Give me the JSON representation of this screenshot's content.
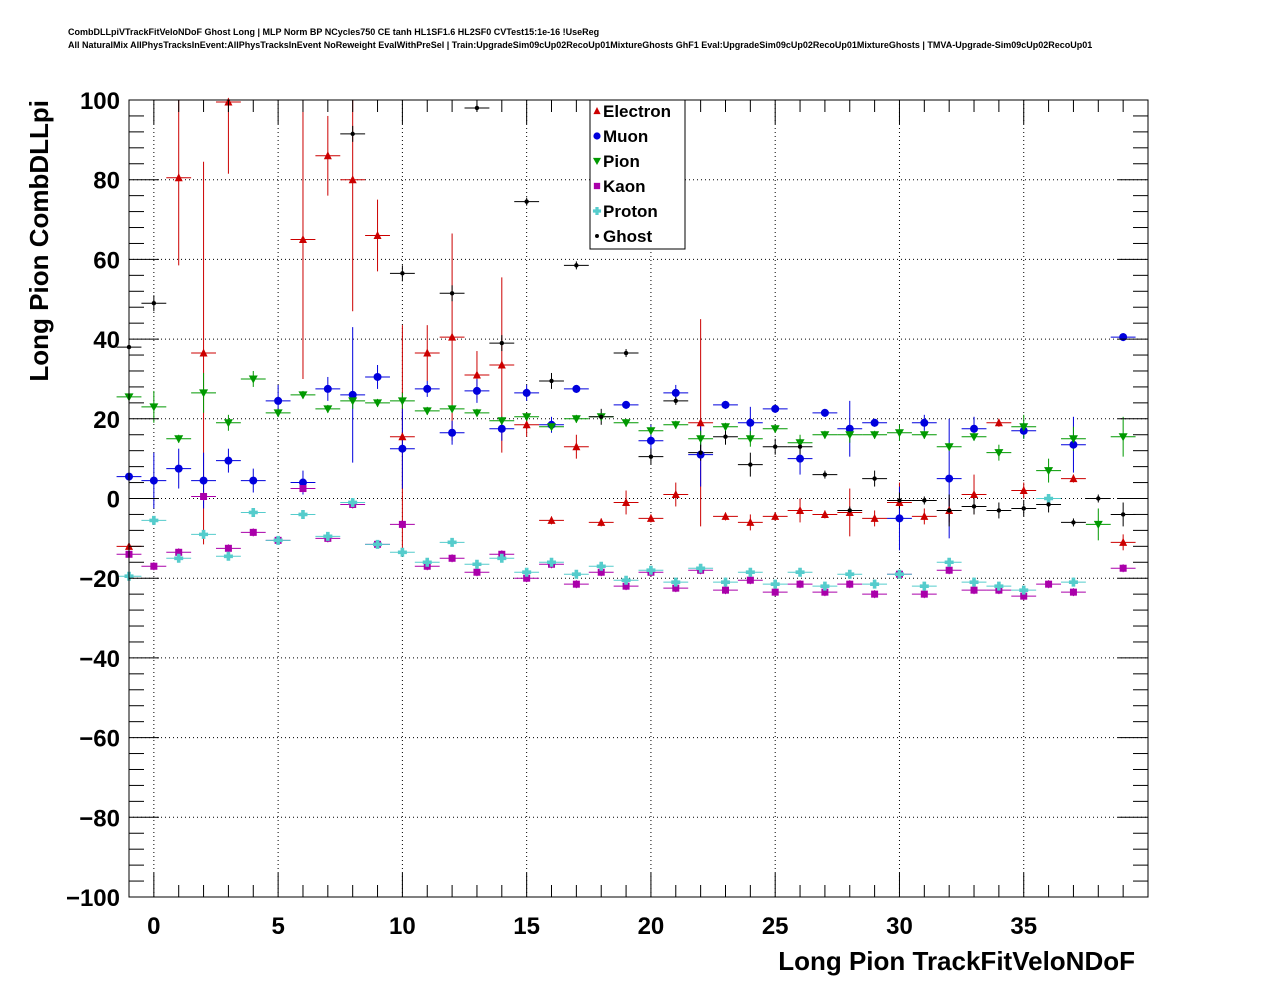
{
  "header": {
    "title_line1": "CombDLLpiVTrackFitVeloNDoF Ghost Long | MLP Norm BP NCycles750 CE tanh HL1SF1.6 HL2SF0 CVTest15:1e-16 !UseReg",
    "title_line2": "All NaturalMix AllPhysTracksInEvent:AllPhysTracksInEvent NoReweight EvalWithPreSel | Train:UpgradeSim09cUp02RecoUp01MixtureGhosts GhF1 Eval:UpgradeSim09cUp02RecoUp01MixtureGhosts | TMVA-Upgrade-Sim09cUp02RecoUp01"
  },
  "chart_data": {
    "type": "scatter",
    "xlabel": "Long Pion TrackFitVeloNDoF",
    "ylabel": "Long Pion CombDLLpi",
    "xlim": [
      -1,
      40
    ],
    "ylim": [
      -100,
      100
    ],
    "x_ticks": [
      "0",
      "5",
      "10",
      "15",
      "20",
      "25",
      "30",
      "35"
    ],
    "y_ticks": [
      "−100",
      "−80",
      "−60",
      "−40",
      "−20",
      "0",
      "20",
      "40",
      "60",
      "80",
      "100"
    ],
    "grid": true,
    "legend_position": "top-center",
    "series": [
      {
        "name": "Electron",
        "color": "#cc0000",
        "marker": "triangle-up",
        "x": [
          -1,
          1,
          2,
          3,
          6,
          7,
          8,
          9,
          10,
          11,
          12,
          13,
          14,
          15,
          16,
          17,
          18,
          19,
          20,
          21,
          22,
          23,
          24,
          25,
          26,
          27,
          28,
          29,
          30,
          31,
          32,
          33,
          34,
          35,
          37,
          39
        ],
        "y": [
          -12,
          80.5,
          36.5,
          99.5,
          65,
          86,
          80,
          66,
          15.5,
          36.5,
          40.5,
          31,
          33.5,
          18.5,
          -5.5,
          13,
          -6,
          -1,
          -5,
          1,
          19,
          -4.5,
          -6,
          -4.5,
          -3,
          -4,
          -3.5,
          -5,
          -1,
          -4.5,
          -3,
          1,
          19,
          2,
          5,
          -11
        ],
        "err": [
          2,
          22,
          48,
          18,
          35,
          10,
          33,
          9,
          28,
          7,
          26,
          6,
          22,
          3,
          1,
          3,
          1,
          3,
          1,
          3,
          26,
          1,
          2,
          1,
          3,
          1,
          6,
          2,
          5,
          2,
          3,
          5,
          1,
          2,
          1,
          2
        ]
      },
      {
        "name": "Muon",
        "color": "#0000dd",
        "marker": "circle",
        "x": [
          -1,
          0,
          1,
          2,
          3,
          4,
          5,
          6,
          7,
          8,
          9,
          10,
          11,
          12,
          13,
          14,
          15,
          16,
          17,
          19,
          20,
          21,
          22,
          23,
          24,
          25,
          26,
          27,
          28,
          29,
          30,
          31,
          32,
          33,
          35,
          37,
          39
        ],
        "y": [
          5.5,
          4.5,
          7.5,
          4.5,
          9.5,
          4.5,
          24.5,
          4,
          27.5,
          26,
          30.5,
          12.5,
          27.5,
          16.5,
          27,
          17.5,
          26.5,
          18.5,
          27.5,
          23.5,
          14.5,
          26.5,
          11,
          23.5,
          19,
          22.5,
          10,
          21.5,
          17.5,
          19,
          -5,
          19,
          5,
          17.5,
          17,
          13.5,
          40.5
        ],
        "err": [
          35,
          7,
          5,
          7,
          3,
          3,
          4,
          3,
          3,
          17,
          3,
          10,
          2,
          3,
          3,
          3,
          2,
          2,
          1,
          1,
          4,
          2,
          8,
          1,
          4,
          1,
          4,
          1,
          7,
          1,
          8,
          2,
          15,
          3,
          2,
          7,
          1
        ]
      },
      {
        "name": "Pion",
        "color": "#009900",
        "marker": "triangle-down",
        "x": [
          -1,
          0,
          1,
          2,
          3,
          4,
          5,
          6,
          7,
          8,
          9,
          10,
          11,
          12,
          13,
          14,
          15,
          16,
          17,
          18,
          19,
          20,
          21,
          22,
          23,
          24,
          25,
          26,
          27,
          28,
          29,
          30,
          31,
          32,
          33,
          34,
          35,
          36,
          37,
          38,
          39
        ],
        "y": [
          25.5,
          23,
          15,
          26.5,
          19,
          30,
          21.5,
          26,
          22.5,
          24.5,
          24,
          24.5,
          22,
          22.5,
          21.5,
          19.5,
          20.5,
          18,
          20,
          20.5,
          19,
          17,
          18.5,
          15,
          18,
          15,
          17.5,
          14,
          16,
          16,
          16,
          16.5,
          16,
          13,
          15.5,
          11.5,
          18,
          7,
          15,
          -6.5,
          15.5
        ],
        "err": [
          14,
          4,
          1,
          5,
          2,
          2,
          1,
          1,
          1,
          2,
          1,
          2,
          1,
          1,
          1,
          1,
          1,
          1,
          1,
          1,
          1,
          1,
          1,
          2,
          1,
          2,
          1,
          2,
          1,
          2,
          1,
          2,
          1,
          1,
          1,
          2,
          3,
          3,
          3,
          4,
          5
        ]
      },
      {
        "name": "Kaon",
        "color": "#aa00aa",
        "marker": "square",
        "x": [
          -1,
          0,
          1,
          2,
          3,
          4,
          5,
          6,
          7,
          8,
          9,
          10,
          11,
          12,
          13,
          14,
          15,
          16,
          17,
          18,
          19,
          20,
          21,
          22,
          23,
          24,
          25,
          26,
          27,
          28,
          29,
          30,
          31,
          32,
          33,
          34,
          35,
          36,
          37,
          39
        ],
        "y": [
          -14,
          -17,
          -13.5,
          0.5,
          -12.5,
          -8.5,
          -10.5,
          2.5,
          -10,
          -1.5,
          -11.5,
          -6.5,
          -17,
          -15,
          -18.5,
          -14,
          -20,
          -16.5,
          -21.5,
          -18.5,
          -22,
          -18.5,
          -22.5,
          -18,
          -23,
          -20.5,
          -23.5,
          -21.5,
          -23.5,
          -21.5,
          -24,
          -19,
          -24,
          -18,
          -23,
          -23,
          -24.5,
          -21.5,
          -23.5,
          -17.5
        ]
      },
      {
        "name": "Proton",
        "color": "#55cccc",
        "marker": "cross",
        "x": [
          -1,
          0,
          1,
          2,
          3,
          4,
          5,
          6,
          7,
          8,
          9,
          10,
          11,
          12,
          13,
          14,
          15,
          16,
          17,
          18,
          19,
          20,
          21,
          22,
          23,
          24,
          25,
          26,
          27,
          28,
          29,
          30,
          31,
          32,
          33,
          34,
          35,
          36,
          37
        ],
        "y": [
          -19.5,
          -5.5,
          -15,
          -9,
          -14.5,
          -3.5,
          -10.5,
          -4,
          -9.5,
          -1,
          -11.5,
          -13.5,
          -16,
          -11,
          -16.5,
          -15,
          -18.5,
          -16,
          -19,
          -17,
          -20.5,
          -18,
          -21,
          -17.5,
          -21,
          -18.5,
          -21.5,
          -18.5,
          -22,
          -19,
          -21.5,
          -19,
          -22,
          -16,
          -21,
          -22,
          -23,
          0,
          -21
        ]
      },
      {
        "name": "Ghost",
        "color": "#000000",
        "marker": "star",
        "x": [
          -1,
          0,
          8,
          10,
          12,
          13,
          14,
          15,
          16,
          17,
          18,
          19,
          20,
          21,
          22,
          23,
          24,
          25,
          26,
          27,
          28,
          29,
          30,
          31,
          32,
          33,
          34,
          35,
          36,
          37,
          38,
          39
        ],
        "y": [
          38,
          49,
          91.5,
          56.5,
          51.5,
          98,
          39,
          74.5,
          29.5,
          58.5,
          20.5,
          36.5,
          10.5,
          24.5,
          11.5,
          15.5,
          8.5,
          13,
          13,
          6,
          -3,
          5,
          -0.5,
          -0.5,
          -3,
          -2,
          -3,
          -2.5,
          -1.5,
          -6,
          0,
          -4
        ],
        "err": [
          3,
          2,
          2,
          2,
          2,
          1,
          2,
          1,
          2,
          1,
          2,
          1,
          2,
          1,
          2,
          2,
          3,
          2,
          2,
          1,
          1,
          2,
          2,
          1,
          4,
          2,
          2,
          2,
          2,
          1,
          1,
          3
        ]
      }
    ]
  }
}
